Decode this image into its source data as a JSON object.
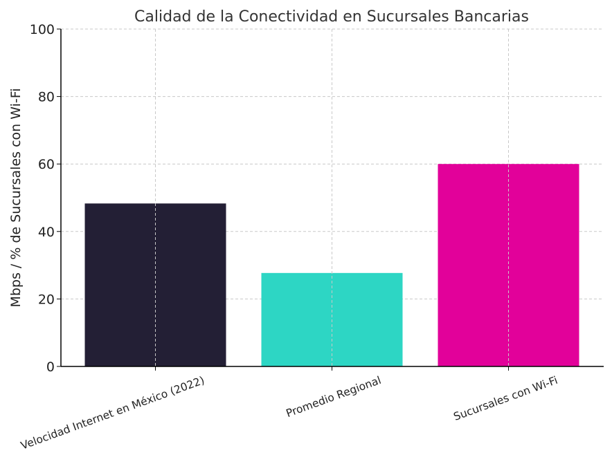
{
  "chart_data": {
    "type": "bar",
    "title": "Calidad de la Conectividad en Sucursales Bancarias",
    "xlabel": "",
    "ylabel": "Mbps / % de Sucursales con Wi-Fi",
    "categories": [
      "Velocidad Internet en México (2022)",
      "Promedio Regional",
      "Sucursales con Wi-Fi"
    ],
    "values": [
      48.3,
      27.7,
      60
    ],
    "colors": [
      "#231f35",
      "#2dd6c4",
      "#e2019a"
    ],
    "ylim": [
      0,
      100
    ],
    "yticks": [
      0,
      20,
      40,
      60,
      80,
      100
    ],
    "grid": true,
    "legend": "none"
  }
}
